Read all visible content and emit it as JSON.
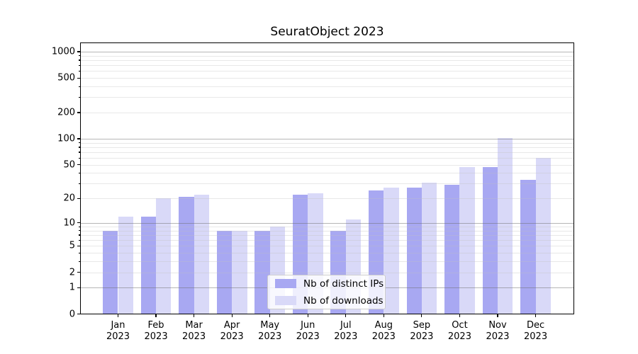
{
  "title": "SeuratObject 2023",
  "axes": {
    "y_tick_labels": [
      "0",
      "1",
      "2",
      "5",
      "10",
      "20",
      "50",
      "100",
      "200",
      "500",
      "1000"
    ],
    "x_tick_months": [
      "Jan",
      "Feb",
      "Mar",
      "Apr",
      "May",
      "Jun",
      "Jul",
      "Aug",
      "Sep",
      "Oct",
      "Nov",
      "Dec"
    ],
    "x_tick_year": "2023"
  },
  "legend": {
    "items": [
      {
        "label": "Nb of distinct IPs",
        "color": "#a8a8f2"
      },
      {
        "label": "Nb of downloads",
        "color": "#d9d9f8"
      }
    ]
  },
  "colors": {
    "distinct_ips_bar": "#a8a8f2",
    "downloads_bar": "#d9d9f8",
    "grid_major": "#b6b6b6",
    "grid_minor": "#e8e8e8",
    "axis_line": "#000000"
  },
  "chart_data": {
    "type": "bar",
    "title": "SeuratObject 2023",
    "categories": [
      "Jan 2023",
      "Feb 2023",
      "Mar 2023",
      "Apr 2023",
      "May 2023",
      "Jun 2023",
      "Jul 2023",
      "Aug 2023",
      "Sep 2023",
      "Oct 2023",
      "Nov 2023",
      "Dec 2023"
    ],
    "series": [
      {
        "name": "Nb of distinct IPs",
        "color": "#a8a8f2",
        "values": [
          8,
          12,
          21,
          8,
          8,
          22,
          8,
          25,
          27,
          29,
          47,
          33
        ]
      },
      {
        "name": "Nb of downloads",
        "color": "#d9d9f8",
        "values": [
          12,
          20,
          22,
          8,
          9,
          23,
          11,
          27,
          31,
          47,
          101,
          60
        ]
      }
    ],
    "xlabel": "",
    "ylabel": "",
    "yscale": "log1p",
    "ylim": [
      0,
      1070
    ],
    "yticks": [
      0,
      1,
      2,
      5,
      10,
      20,
      50,
      100,
      200,
      500,
      1000
    ],
    "yticks_minor": [
      3,
      4,
      6,
      7,
      8,
      9,
      30,
      40,
      60,
      70,
      80,
      90,
      300,
      400,
      600,
      700,
      800,
      900
    ],
    "grid": true,
    "grid_on_top_of_bars": true,
    "legend_position": "lower center"
  }
}
